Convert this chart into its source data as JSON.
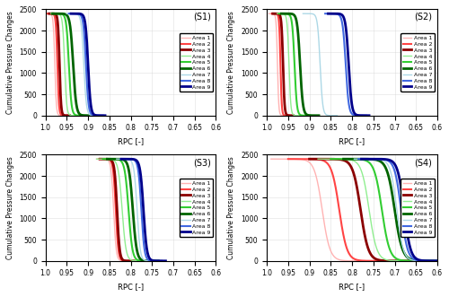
{
  "cases": [
    "S1",
    "S2",
    "S3",
    "S4"
  ],
  "areas": [
    "Area 1",
    "Area 2",
    "Area 3",
    "Area 4",
    "Area 5",
    "Area 6",
    "Area 7",
    "Area 8",
    "Area 9"
  ],
  "colors": [
    "#FFB3B3",
    "#FF4444",
    "#8B0000",
    "#90EE90",
    "#32CD32",
    "#006400",
    "#ADD8E6",
    "#4169E1",
    "#00008B"
  ],
  "linewidths": [
    1.0,
    1.5,
    2.0,
    1.0,
    1.5,
    2.0,
    1.0,
    1.5,
    2.0
  ],
  "xlim": [
    1.0,
    0.6
  ],
  "ylim": [
    0,
    2500
  ],
  "xlabel": "RPC [-]",
  "ylabel": "Cumulative Pressure Changes",
  "yticks": [
    0,
    500,
    1000,
    1500,
    2000,
    2500
  ],
  "xticks": [
    1.0,
    0.95,
    0.9,
    0.85,
    0.8,
    0.75,
    0.7,
    0.65,
    0.6
  ],
  "y_max": 2400,
  "case_centers_S1": [
    0.978,
    0.972,
    0.967,
    0.955,
    0.945,
    0.935,
    0.91,
    0.905,
    0.9
  ],
  "case_widths_S1": [
    0.006,
    0.006,
    0.006,
    0.008,
    0.01,
    0.012,
    0.01,
    0.01,
    0.01
  ],
  "case_centers_S2": [
    0.975,
    0.968,
    0.962,
    0.948,
    0.935,
    0.922,
    0.875,
    0.815,
    0.808
  ],
  "case_widths_S2": [
    0.005,
    0.005,
    0.006,
    0.007,
    0.009,
    0.011,
    0.01,
    0.012,
    0.012
  ],
  "case_centers_S3": [
    0.84,
    0.835,
    0.832,
    0.82,
    0.805,
    0.795,
    0.785,
    0.775,
    0.77
  ],
  "case_widths_S3": [
    0.01,
    0.01,
    0.01,
    0.015,
    0.015,
    0.015,
    0.012,
    0.012,
    0.013
  ],
  "case_centers_S4": [
    0.87,
    0.83,
    0.78,
    0.76,
    0.73,
    0.7,
    0.695,
    0.685,
    0.678
  ],
  "case_widths_S4": [
    0.03,
    0.03,
    0.03,
    0.03,
    0.03,
    0.03,
    0.025,
    0.025,
    0.025
  ],
  "fig_width": 5.0,
  "fig_height": 3.31,
  "dpi": 100
}
